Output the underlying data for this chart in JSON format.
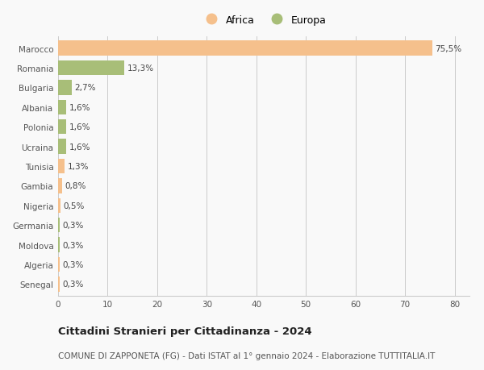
{
  "countries": [
    "Marocco",
    "Romania",
    "Bulgaria",
    "Albania",
    "Polonia",
    "Ucraina",
    "Tunisia",
    "Gambia",
    "Nigeria",
    "Germania",
    "Moldova",
    "Algeria",
    "Senegal"
  ],
  "values": [
    75.5,
    13.3,
    2.7,
    1.6,
    1.6,
    1.6,
    1.3,
    0.8,
    0.5,
    0.3,
    0.3,
    0.3,
    0.3
  ],
  "labels": [
    "75,5%",
    "13,3%",
    "2,7%",
    "1,6%",
    "1,6%",
    "1,6%",
    "1,3%",
    "0,8%",
    "0,5%",
    "0,3%",
    "0,3%",
    "0,3%",
    "0,3%"
  ],
  "continents": [
    "Africa",
    "Europa",
    "Europa",
    "Europa",
    "Europa",
    "Europa",
    "Africa",
    "Africa",
    "Africa",
    "Europa",
    "Europa",
    "Africa",
    "Africa"
  ],
  "colors": {
    "Africa": "#F5C08C",
    "Europa": "#A8BE78"
  },
  "xlim": [
    0,
    83
  ],
  "xticks": [
    0,
    10,
    20,
    30,
    40,
    50,
    60,
    70,
    80
  ],
  "title": "Cittadini Stranieri per Cittadinanza - 2024",
  "subtitle": "COMUNE DI ZAPPONETA (FG) - Dati ISTAT al 1° gennaio 2024 - Elaborazione TUTTITALIA.IT",
  "background_color": "#f9f9f9",
  "bar_height": 0.75,
  "grid_color": "#cccccc",
  "label_fontsize": 7.5,
  "tick_fontsize": 7.5,
  "title_fontsize": 9.5,
  "subtitle_fontsize": 7.5
}
